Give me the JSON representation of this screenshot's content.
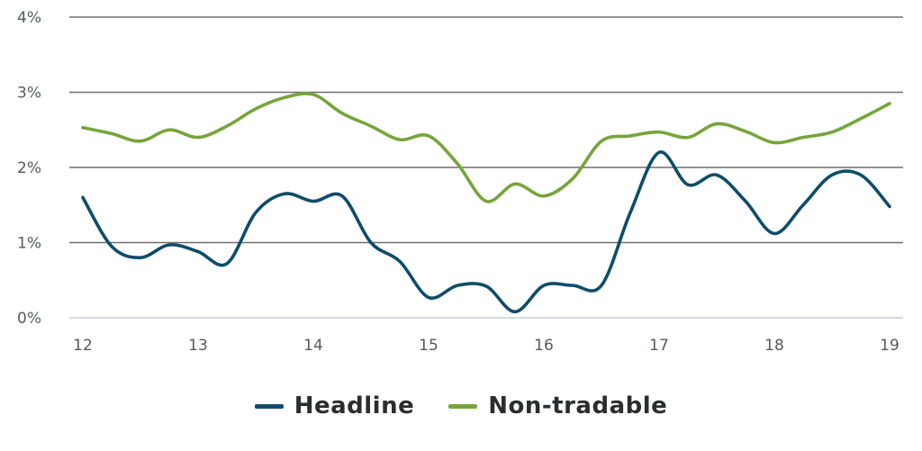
{
  "chart_data": {
    "type": "line",
    "title": "",
    "xlabel": "",
    "ylabel": "",
    "xlim": [
      12,
      19
    ],
    "ylim": [
      0,
      4
    ],
    "y_ticks": [
      0,
      1,
      2,
      3,
      4
    ],
    "y_tick_labels": [
      "0%",
      "1%",
      "2%",
      "3%",
      "4%"
    ],
    "x_ticks": [
      12,
      13,
      14,
      15,
      16,
      17,
      18,
      19
    ],
    "x_tick_labels": [
      "12",
      "13",
      "14",
      "15",
      "16",
      "17",
      "18",
      "19"
    ],
    "grid": "horizontal",
    "legend_position": "bottom-center",
    "series": [
      {
        "name": "Headline",
        "color": "#0f4c6b",
        "points": [
          [
            12.0,
            1.6
          ],
          [
            12.25,
            0.95
          ],
          [
            12.5,
            0.8
          ],
          [
            12.75,
            0.97
          ],
          [
            13.0,
            0.88
          ],
          [
            13.25,
            0.72
          ],
          [
            13.5,
            1.4
          ],
          [
            13.75,
            1.65
          ],
          [
            14.0,
            1.55
          ],
          [
            14.25,
            1.62
          ],
          [
            14.5,
            1.0
          ],
          [
            14.75,
            0.75
          ],
          [
            15.0,
            0.27
          ],
          [
            15.25,
            0.43
          ],
          [
            15.5,
            0.42
          ],
          [
            15.75,
            0.08
          ],
          [
            16.0,
            0.43
          ],
          [
            16.25,
            0.43
          ],
          [
            16.5,
            0.43
          ],
          [
            16.75,
            1.4
          ],
          [
            17.0,
            2.2
          ],
          [
            17.25,
            1.77
          ],
          [
            17.5,
            1.9
          ],
          [
            17.75,
            1.55
          ],
          [
            18.0,
            1.12
          ],
          [
            18.25,
            1.5
          ],
          [
            18.5,
            1.9
          ],
          [
            18.75,
            1.9
          ],
          [
            19.0,
            1.48
          ]
        ]
      },
      {
        "name": "Non-tradable",
        "color": "#76a53a",
        "points": [
          [
            12.0,
            2.53
          ],
          [
            12.25,
            2.45
          ],
          [
            12.5,
            2.35
          ],
          [
            12.75,
            2.5
          ],
          [
            13.0,
            2.4
          ],
          [
            13.25,
            2.55
          ],
          [
            13.5,
            2.78
          ],
          [
            13.75,
            2.93
          ],
          [
            14.0,
            2.97
          ],
          [
            14.25,
            2.72
          ],
          [
            14.5,
            2.55
          ],
          [
            14.75,
            2.37
          ],
          [
            15.0,
            2.42
          ],
          [
            15.25,
            2.05
          ],
          [
            15.5,
            1.55
          ],
          [
            15.75,
            1.78
          ],
          [
            16.0,
            1.62
          ],
          [
            16.25,
            1.85
          ],
          [
            16.5,
            2.35
          ],
          [
            16.75,
            2.42
          ],
          [
            17.0,
            2.47
          ],
          [
            17.25,
            2.4
          ],
          [
            17.5,
            2.58
          ],
          [
            17.75,
            2.48
          ],
          [
            18.0,
            2.33
          ],
          [
            18.25,
            2.4
          ],
          [
            18.5,
            2.47
          ],
          [
            18.75,
            2.65
          ],
          [
            19.0,
            2.85
          ]
        ]
      }
    ]
  }
}
